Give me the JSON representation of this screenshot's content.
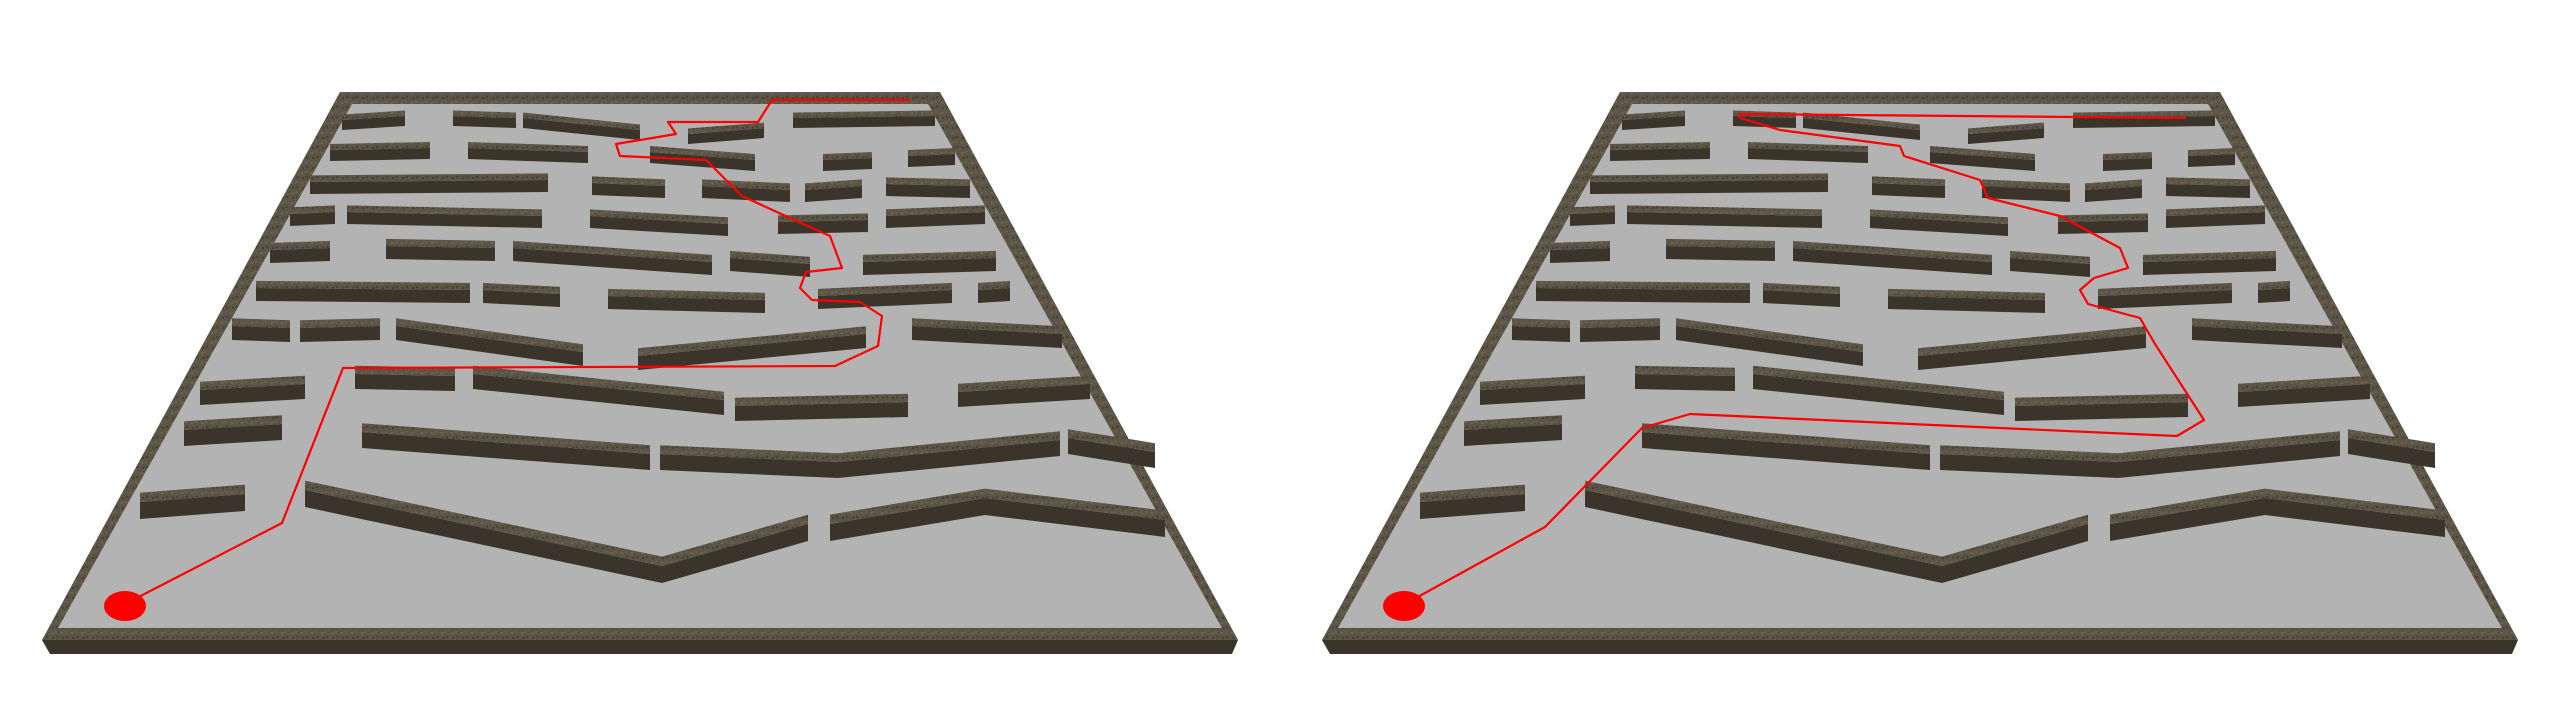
{
  "scene": {
    "type": "maze-path-comparison",
    "panel_count": 2,
    "floor_color": "#b3b3b3",
    "wall_top_color": "#5a5245",
    "wall_side_color": "#3b342a",
    "path_color": "#ff0000",
    "start_marker_color": "#ff0000"
  },
  "panels": [
    {
      "name": "left-maze",
      "route": "shorter-path"
    },
    {
      "name": "right-maze",
      "route": "longer-path"
    }
  ]
}
